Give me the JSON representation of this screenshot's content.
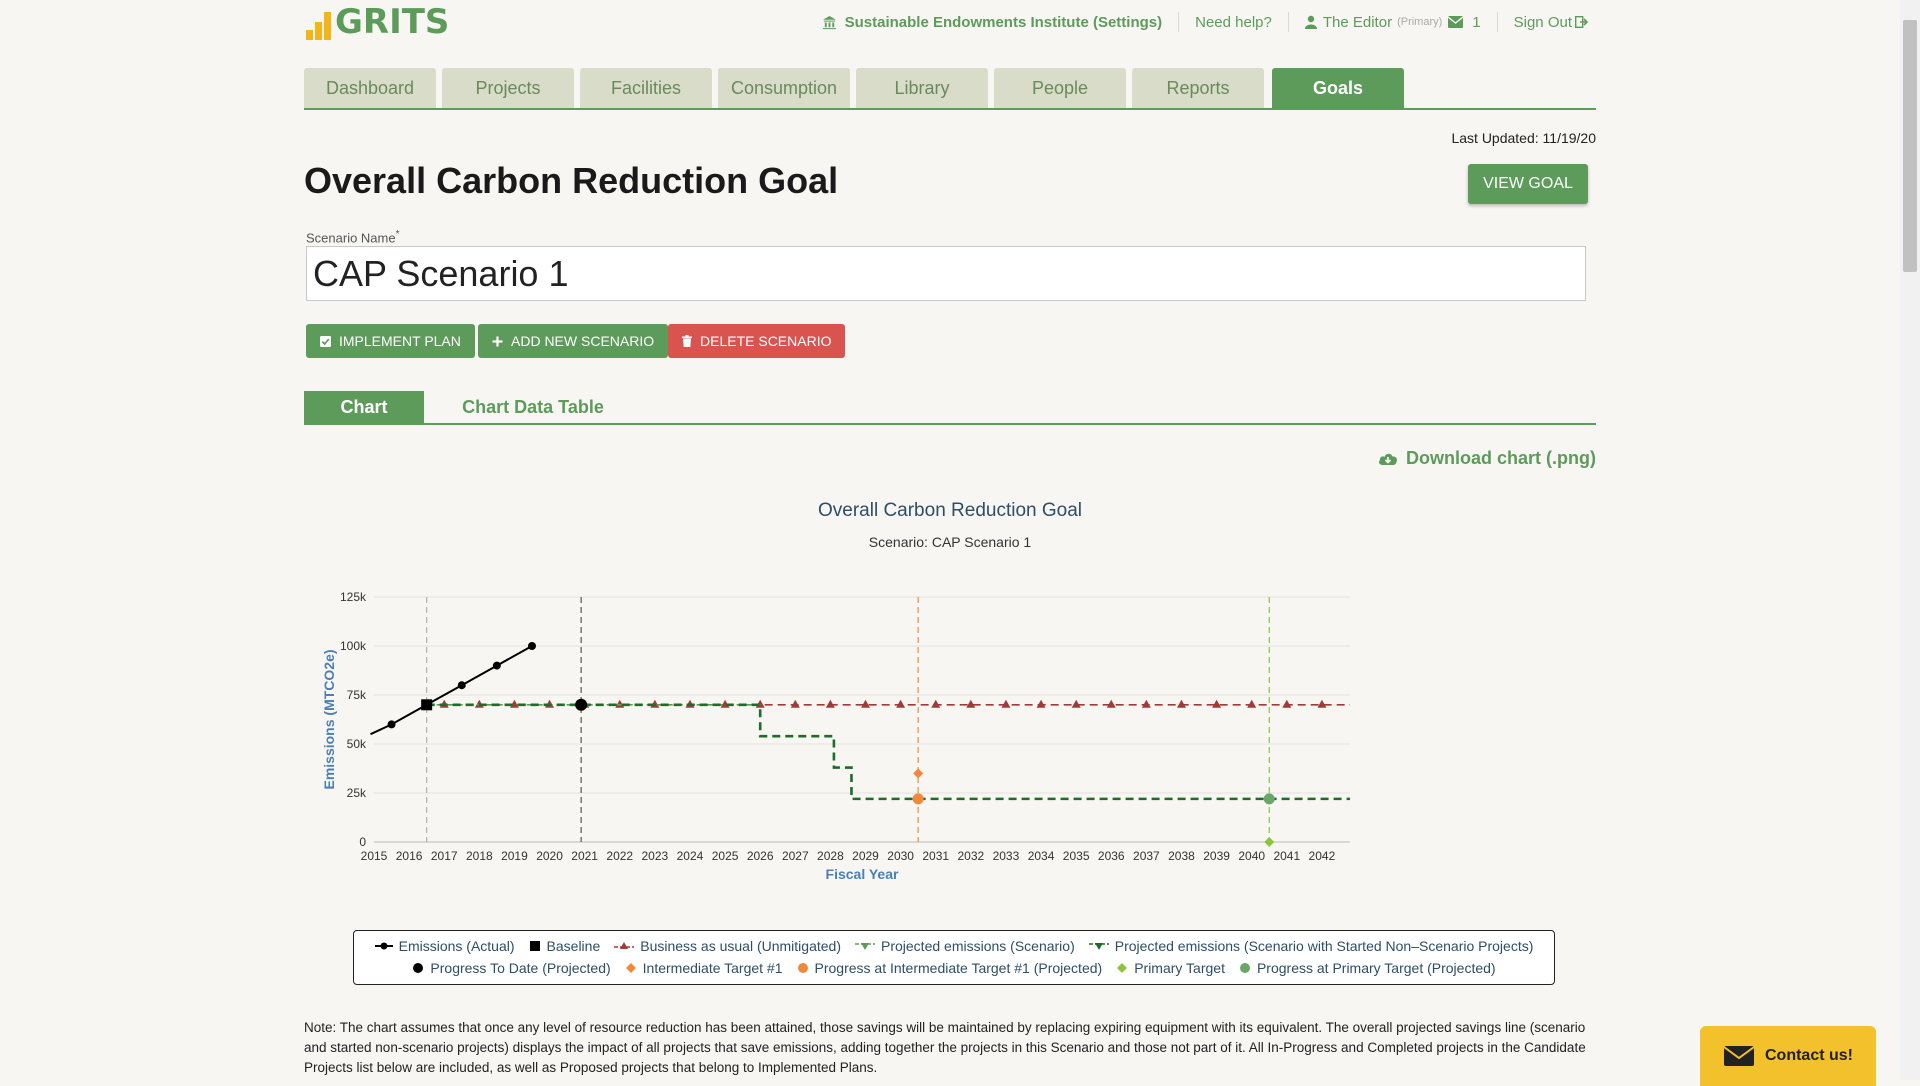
{
  "header": {
    "logo": "GRITS",
    "org_link": "Sustainable Endowments Institute (Settings)",
    "help_link": "Need help?",
    "user_name": "The Editor",
    "user_role": "(Primary)",
    "message_count": "1",
    "sign_out": "Sign Out"
  },
  "nav": {
    "tabs": [
      "Dashboard",
      "Projects",
      "Facilities",
      "Consumption",
      "Library",
      "People",
      "Reports",
      "Goals"
    ],
    "active": "Goals"
  },
  "last_updated": "Last Updated: 11/19/20",
  "page_title": "Overall Carbon Reduction Goal",
  "view_goal": "VIEW GOAL",
  "scenario_field": {
    "label": "Scenario Name",
    "required_mark": "*",
    "value": "CAP Scenario 1"
  },
  "actions": {
    "implement": "IMPLEMENT PLAN",
    "add_new": "ADD NEW SCENARIO",
    "delete": "DELETE SCENARIO"
  },
  "tabs": {
    "chart": "Chart",
    "table": "Chart Data Table"
  },
  "download": "Download chart (.png)",
  "colors": {
    "brand_green": "#5d9b5b",
    "danger_red": "#d9534f",
    "bau_red": "#a33a3a",
    "scenario_green": "#1e6b2a",
    "intermediate_orange": "#f08a3a",
    "primary_target_green": "#8cc63f",
    "progress_primary": "#6aa56a"
  },
  "chart_data": {
    "type": "line",
    "title": "Overall Carbon Reduction Goal",
    "subtitle": "Scenario: CAP Scenario 1",
    "xlabel": "Fiscal Year",
    "ylabel": "Emissions (MTCO2e)",
    "ylim": [
      0,
      125000
    ],
    "xlim": [
      2015,
      2042.8
    ],
    "y_ticks": [
      "0",
      "25k",
      "50k",
      "75k",
      "100k",
      "125k"
    ],
    "x_ticks": [
      "2015",
      "2016",
      "2017",
      "2018",
      "2019",
      "2020",
      "2021",
      "2022",
      "2023",
      "2024",
      "2025",
      "2026",
      "2027",
      "2028",
      "2029",
      "2030",
      "2031",
      "2032",
      "2033",
      "2034",
      "2035",
      "2036",
      "2037",
      "2038",
      "2039",
      "2040",
      "2041",
      "2042"
    ],
    "vertical_lines": [
      {
        "x": 2016.5,
        "style": "baseline"
      },
      {
        "x": 2020.9,
        "style": "current"
      },
      {
        "x": 2030.5,
        "style": "intermediate"
      },
      {
        "x": 2040.5,
        "style": "primary"
      }
    ],
    "series": [
      {
        "name": "Emissions (Actual)",
        "points": [
          [
            2014.9,
            55000
          ],
          [
            2015.5,
            60000
          ],
          [
            2016.5,
            70000
          ],
          [
            2017.5,
            80000
          ],
          [
            2018.5,
            90000
          ],
          [
            2019.5,
            100000
          ]
        ]
      },
      {
        "name": "Baseline",
        "points": [
          [
            2016.5,
            70000
          ]
        ]
      },
      {
        "name": "Business as usual (Unmitigated)",
        "points": [
          [
            2016.5,
            70000
          ],
          [
            2042.8,
            70000
          ]
        ]
      },
      {
        "name": "Projected emissions (Scenario)",
        "points": [
          [
            2016.5,
            70000
          ],
          [
            2042.8,
            70000
          ]
        ]
      },
      {
        "name": "Projected emissions (Scenario with Started Non-Scenario Projects)",
        "steps": [
          [
            2016.5,
            70000
          ],
          [
            2026.0,
            70000
          ],
          [
            2026.0,
            54000
          ],
          [
            2028.1,
            54000
          ],
          [
            2028.1,
            38000
          ],
          [
            2028.6,
            38000
          ],
          [
            2028.6,
            22000
          ],
          [
            2042.8,
            22000
          ]
        ]
      },
      {
        "name": "Progress To Date (Projected)",
        "points": [
          [
            2020.9,
            70000
          ]
        ]
      },
      {
        "name": "Intermediate Target #1",
        "points": [
          [
            2030.5,
            35000
          ]
        ]
      },
      {
        "name": "Progress at Intermediate Target #1 (Projected)",
        "points": [
          [
            2030.5,
            22000
          ]
        ]
      },
      {
        "name": "Primary Target",
        "points": [
          [
            2040.5,
            0
          ]
        ]
      },
      {
        "name": "Progress at Primary Target (Projected)",
        "points": [
          [
            2040.5,
            22000
          ]
        ]
      }
    ],
    "legend_position": "bottom"
  },
  "legend_labels": [
    "Emissions (Actual)",
    "Baseline",
    "Business as usual (Unmitigated)",
    "Projected emissions (Scenario)",
    "Projected emissions (Scenario with Started Non–Scenario Projects)",
    "Progress To Date (Projected)",
    "Intermediate Target #1",
    "Progress at Intermediate Target #1 (Projected)",
    "Primary Target",
    "Progress at Primary Target (Projected)"
  ],
  "note": "Note: The chart assumes that once any level of resource reduction has been attained, those savings will be maintained by replacing expiring equipment with its equivalent. The overall projected savings line (scenario and started non-scenario projects) displays the impact of all projects that save emissions, adding together the projects in this Scenario and those not part of it. All In-Progress and Completed projects in the Candidate Projects list below are included, as well as Proposed projects that belong to Implemented Plans.",
  "contact": "Contact us!"
}
